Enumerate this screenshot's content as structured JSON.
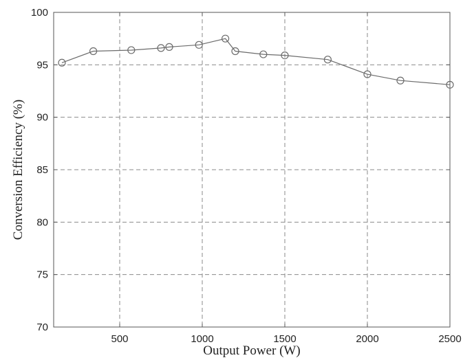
{
  "chart_data": {
    "type": "line",
    "xlabel": "Output Power (W)",
    "ylabel": "Conversion Efficiency (%)",
    "xlim": [
      100,
      2500
    ],
    "ylim": [
      70,
      100
    ],
    "xticks": [
      500,
      1000,
      1500,
      2000,
      2500
    ],
    "yticks": [
      70,
      75,
      80,
      85,
      90,
      95,
      100
    ],
    "grid": true,
    "marker": "circle",
    "line_color": "#6b6b6b",
    "x": [
      150,
      340,
      570,
      750,
      800,
      980,
      1140,
      1200,
      1370,
      1500,
      1760,
      2000,
      2200,
      2500
    ],
    "series": [
      {
        "values": [
          95.2,
          96.3,
          96.4,
          96.6,
          96.7,
          96.9,
          97.5,
          96.3,
          96.0,
          95.9,
          95.5,
          94.1,
          93.5,
          93.1
        ]
      }
    ]
  }
}
